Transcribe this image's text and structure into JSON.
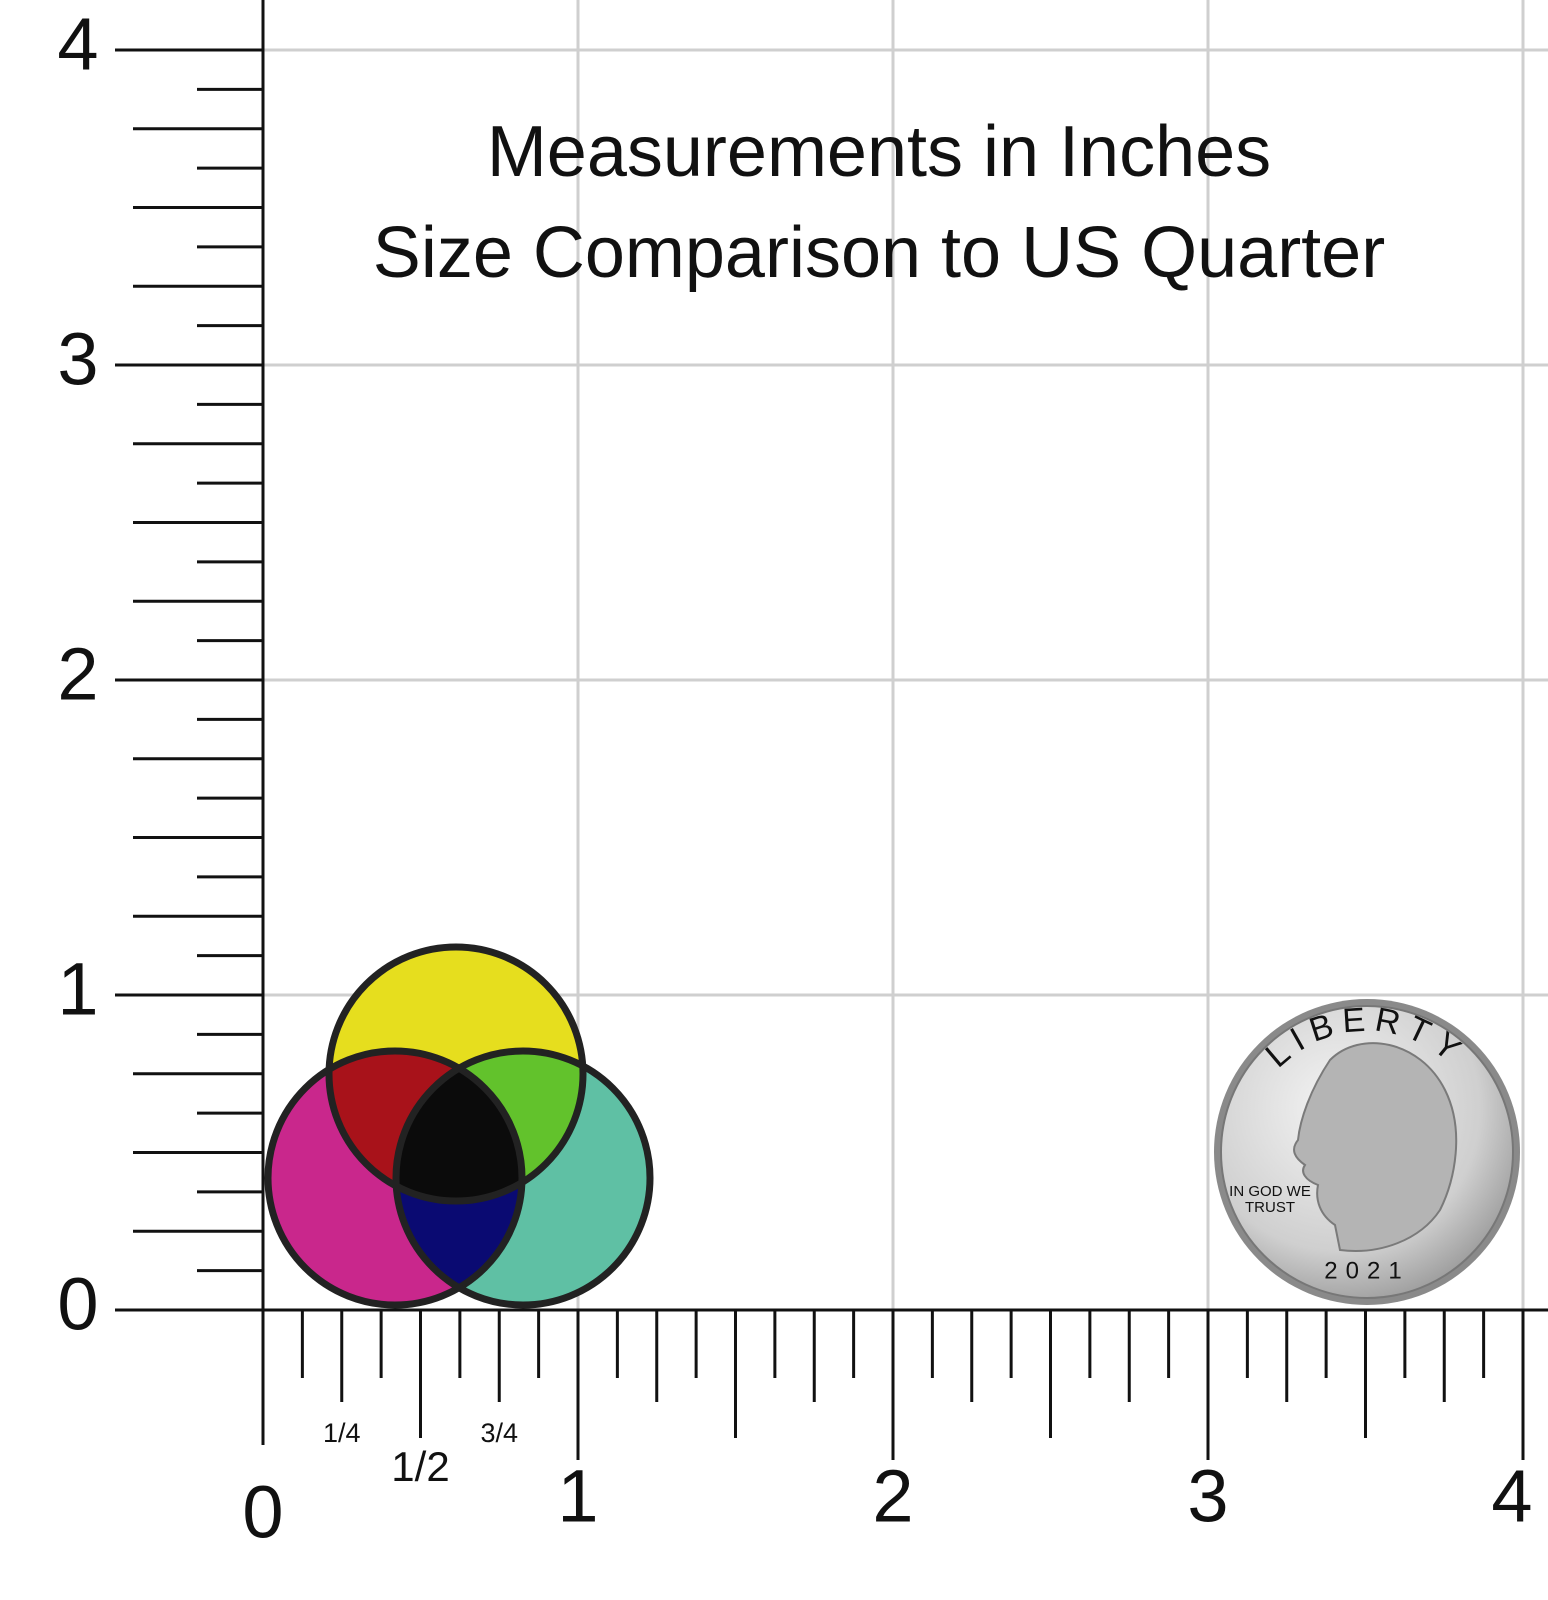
{
  "title": [
    "Measurements in Inches",
    "Size Comparison to US Quarter"
  ],
  "y_axis": {
    "labels": [
      "0",
      "1",
      "2",
      "3",
      "4"
    ]
  },
  "x_axis": {
    "labels": [
      "0",
      "1",
      "2",
      "3",
      "4"
    ],
    "fractions": [
      "1/4",
      "1/2",
      "3/4"
    ]
  },
  "quarter": {
    "legend": "LIBERTY",
    "motto": [
      "IN GOD WE",
      "TRUST"
    ],
    "year": "2021"
  }
}
